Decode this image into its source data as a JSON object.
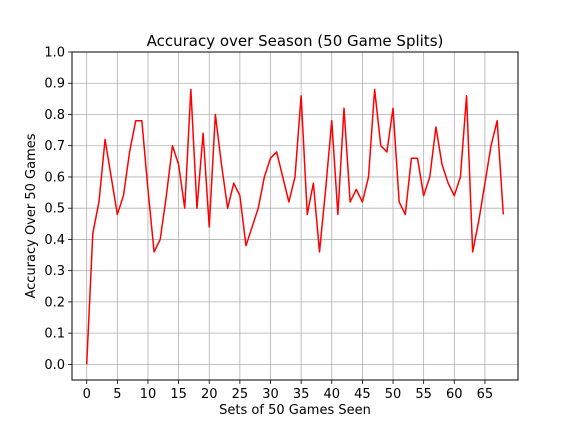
{
  "chart_data": {
    "type": "line",
    "title": "Accuracy over Season (50 Game Splits)",
    "xlabel": "Sets of 50 Games Seen",
    "ylabel": "Accuracy Over 50 Games",
    "xlim": [
      -2.4,
      70.4
    ],
    "ylim": [
      -0.05,
      1.0
    ],
    "xticks": [
      0,
      5,
      10,
      15,
      20,
      25,
      30,
      35,
      40,
      45,
      50,
      55,
      60,
      65
    ],
    "xtick_labels": [
      "0",
      "5",
      "10",
      "15",
      "20",
      "25",
      "30",
      "35",
      "40",
      "45",
      "50",
      "55",
      "60",
      "65"
    ],
    "yticks": [
      0.0,
      0.1,
      0.2,
      0.3,
      0.4,
      0.5,
      0.6,
      0.7,
      0.8,
      0.9,
      1.0
    ],
    "ytick_labels": [
      "0.0",
      "0.1",
      "0.2",
      "0.3",
      "0.4",
      "0.5",
      "0.6",
      "0.7",
      "0.8",
      "0.9",
      "1.0"
    ],
    "grid": true,
    "legend": false,
    "series": [
      {
        "color": "#ff0000",
        "x": [
          0,
          1,
          2,
          3,
          4,
          5,
          6,
          7,
          8,
          9,
          10,
          11,
          12,
          13,
          14,
          15,
          16,
          17,
          18,
          19,
          20,
          21,
          22,
          23,
          24,
          25,
          26,
          27,
          28,
          29,
          30,
          31,
          32,
          33,
          34,
          35,
          36,
          37,
          38,
          39,
          40,
          41,
          42,
          43,
          44,
          45,
          46,
          47,
          48,
          49,
          50,
          51,
          52,
          53,
          54,
          55,
          56,
          57,
          58,
          59,
          60,
          61,
          62,
          63,
          64,
          65,
          66,
          67,
          68
        ],
        "values": [
          0.0,
          0.42,
          0.52,
          0.72,
          0.6,
          0.48,
          0.54,
          0.68,
          0.78,
          0.78,
          0.56,
          0.36,
          0.4,
          0.54,
          0.7,
          0.64,
          0.5,
          0.88,
          0.5,
          0.74,
          0.44,
          0.8,
          0.64,
          0.5,
          0.58,
          0.54,
          0.38,
          0.44,
          0.5,
          0.6,
          0.66,
          0.68,
          0.6,
          0.52,
          0.6,
          0.86,
          0.48,
          0.58,
          0.36,
          0.56,
          0.78,
          0.48,
          0.82,
          0.52,
          0.56,
          0.52,
          0.6,
          0.88,
          0.7,
          0.68,
          0.82,
          0.52,
          0.48,
          0.66,
          0.66,
          0.54,
          0.6,
          0.76,
          0.64,
          0.58,
          0.54,
          0.6,
          0.86,
          0.36,
          0.46,
          0.58,
          0.7,
          0.78,
          0.48
        ]
      }
    ]
  }
}
